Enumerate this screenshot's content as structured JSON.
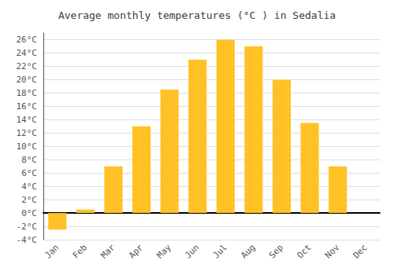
{
  "chart_data": {
    "type": "bar",
    "title": "Average monthly temperatures (°C ) in Sedalia",
    "categories": [
      "Jan",
      "Feb",
      "Mar",
      "Apr",
      "May",
      "Jun",
      "Jul",
      "Aug",
      "Sep",
      "Oct",
      "Nov",
      "Dec"
    ],
    "values": [
      -2.5,
      0.5,
      7.0,
      13.0,
      18.5,
      23.0,
      26.0,
      25.0,
      20.0,
      13.5,
      7.0,
      0
    ],
    "color": "#FFC125",
    "ylim": [
      -4,
      27
    ],
    "yticks": [
      {
        "value": -4,
        "label": "-4°C"
      },
      {
        "value": -2,
        "label": "-2°C"
      },
      {
        "value": 0,
        "label": "0°C"
      },
      {
        "value": 2,
        "label": "2°C"
      },
      {
        "value": 4,
        "label": "4°C"
      },
      {
        "value": 6,
        "label": "6°C"
      },
      {
        "value": 8,
        "label": "8°C"
      },
      {
        "value": 10,
        "label": "10°C"
      },
      {
        "value": 12,
        "label": "12°C"
      },
      {
        "value": 14,
        "label": "14°C"
      },
      {
        "value": 16,
        "label": "16°C"
      },
      {
        "value": 18,
        "label": "18°C"
      },
      {
        "value": 20,
        "label": "20°C"
      },
      {
        "value": 22,
        "label": "22°C"
      },
      {
        "value": 24,
        "label": "24°C"
      },
      {
        "value": 26,
        "label": "26°C"
      }
    ],
    "grid": true
  }
}
